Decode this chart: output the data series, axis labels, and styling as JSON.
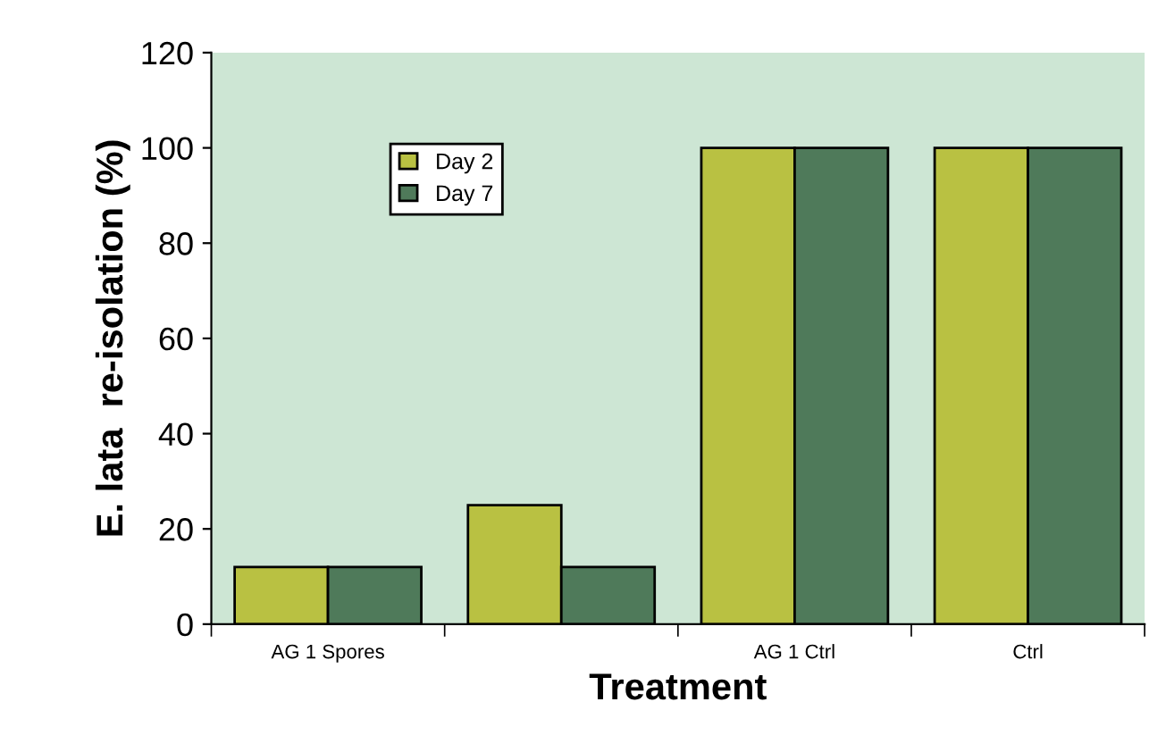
{
  "chart_data": {
    "type": "bar",
    "xlabel": "Treatment",
    "ylabel": "E. lata  re-isolation (%)",
    "categories": [
      "AG 1 Spores",
      null,
      "AG 1 Ctrl",
      "Ctrl"
    ],
    "series": [
      {
        "name": "Day 2",
        "color": "#b9c142",
        "values": [
          12,
          25,
          100,
          100
        ]
      },
      {
        "name": "Day 7",
        "color": "#4f7a5a",
        "values": [
          12,
          12,
          100,
          100
        ]
      }
    ],
    "ylim": [
      0,
      120
    ],
    "yticks": [
      0,
      20,
      40,
      60,
      80,
      100,
      120
    ],
    "grid": false,
    "legend": "top left"
  }
}
